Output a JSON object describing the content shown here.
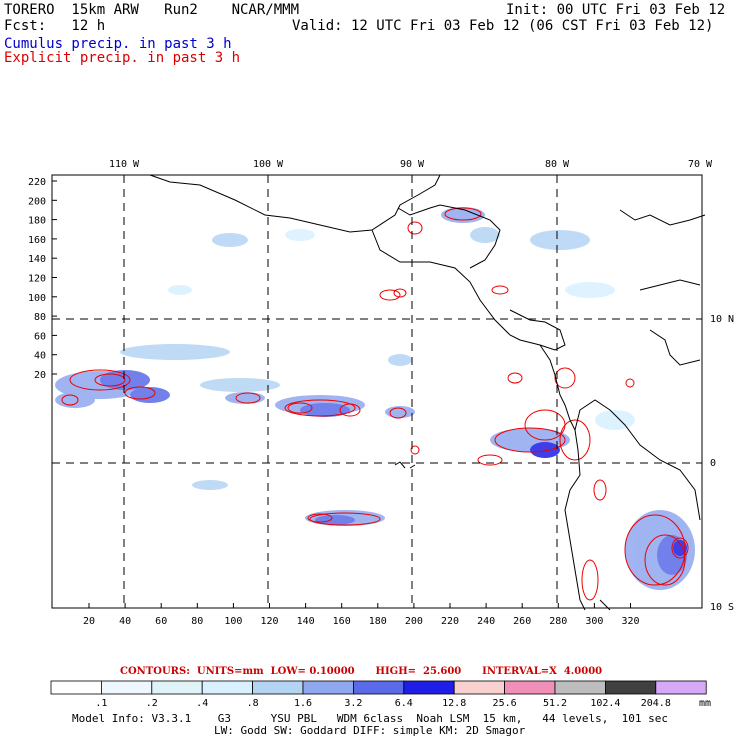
{
  "header": {
    "title_left": "TORERO  15km ARW   Run2    NCAR/MMM",
    "init": "Init: 00 UTC Fri 03 Feb 12",
    "fcst": "Fcst:   12 h",
    "valid": "Valid: 12 UTC Fri 03 Feb 12 (06 CST Fri 03 Feb 12)",
    "legend_cumulus": "Cumulus precip. in past 3 h",
    "legend_explicit": "Explicit precip. in past 3 h"
  },
  "map": {
    "top_lon_labels": [
      "110 W",
      "100 W",
      "90 W",
      "80 W",
      "70 W"
    ],
    "right_lat_labels": [
      "10 N",
      "0",
      "10 S"
    ],
    "left_grid_labels": [
      "220",
      "200",
      "180",
      "160",
      "140",
      "120",
      "100",
      "80",
      "60",
      "40",
      "20"
    ],
    "bottom_grid_labels": [
      "20",
      "40",
      "60",
      "80",
      "100",
      "120",
      "140",
      "160",
      "180",
      "200",
      "220",
      "240",
      "260",
      "280",
      "300",
      "320"
    ],
    "colors": {
      "coast": "#000000",
      "contour": "#ee0000",
      "grid": "#000000"
    }
  },
  "contours_line": "CONTOURS:  UNITS=mm  LOW= 0.10000      HIGH=  25.600      INTERVAL=X  4.0000",
  "colorbar": {
    "labels": [
      ".1",
      ".2",
      ".4",
      ".8",
      "1.6",
      "3.2",
      "6.4",
      "12.8",
      "25.6",
      "51.2",
      "102.4",
      "204.8"
    ],
    "unit": "mm",
    "colors": [
      "#ffffff",
      "#eef6ff",
      "#e0f4f8",
      "#d8f0ff",
      "#b4d4f4",
      "#8fa8ee",
      "#5a6ae8",
      "#1e1ee6",
      "#f8d0d0",
      "#f090b8",
      "#bdbdbd",
      "#404040",
      "#d8a8f8"
    ]
  },
  "footer": {
    "line1": "Model Info: V3.3.1    G3      YSU PBL   WDM 6class  Noah LSM  15 km,   44 levels,  101 sec",
    "line2": "LW: Godd SW: Goddard DIFF: simple KM: 2D Smagor"
  }
}
